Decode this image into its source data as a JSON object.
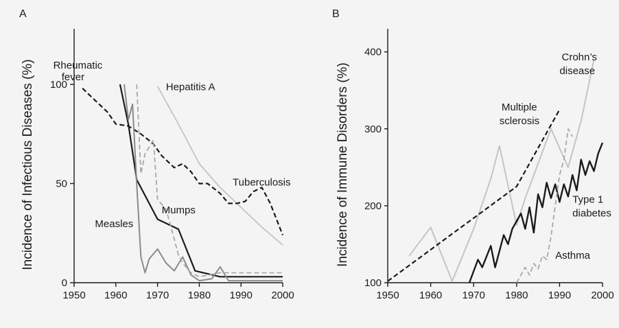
{
  "chart_data": [
    {
      "type": "line",
      "panel_label": "A",
      "title": "",
      "xlabel": "",
      "ylabel": "Incidence of Infectious Diseases (%)",
      "xlim": [
        1950,
        2000
      ],
      "ylim": [
        0,
        128
      ],
      "xticks": [
        "1950",
        "1960",
        "1970",
        "1980",
        "1990",
        "2000"
      ],
      "yticks": [
        "0",
        "50",
        "100"
      ],
      "grid": false,
      "legend": "none",
      "series": [
        {
          "name": "Rheumatic fever",
          "color": "#1a1a1a",
          "dash": "solid",
          "width": 2.2,
          "x": [
            1961,
            1963,
            1965,
            1970,
            1975,
            1979,
            1985,
            2000
          ],
          "y": [
            100,
            80,
            52,
            32,
            27,
            6,
            3,
            3
          ]
        },
        {
          "name": "Hepatitis A",
          "color": "#c4c4c4",
          "dash": "solid",
          "width": 1.8,
          "x": [
            1970,
            1975,
            1980,
            1985,
            1990,
            1995,
            2000
          ],
          "y": [
            99,
            80,
            60,
            48,
            38,
            28,
            19
          ]
        },
        {
          "name": "Tuberculosis",
          "color": "#1a1a1a",
          "dash": "dashed",
          "width": 2.2,
          "x": [
            1952,
            1954,
            1956,
            1958,
            1960,
            1963,
            1966,
            1969,
            1971,
            1974,
            1976,
            1978,
            1980,
            1982,
            1985,
            1987,
            1989,
            1991,
            1993,
            1995,
            1997,
            2000
          ],
          "y": [
            98,
            94,
            90,
            86,
            80,
            79,
            75,
            70,
            64,
            58,
            60,
            56,
            50,
            50,
            45,
            40,
            40,
            41,
            46,
            48,
            40,
            24
          ]
        },
        {
          "name": "Measles",
          "color": "#8a8a8a",
          "dash": "solid",
          "width": 2,
          "x": [
            1962,
            1963,
            1964,
            1965,
            1966,
            1967,
            1968,
            1970,
            1972,
            1974,
            1976,
            1978,
            1980,
            1983,
            1985,
            1987,
            2000
          ],
          "y": [
            100,
            82,
            90,
            50,
            13,
            5,
            12,
            17,
            10,
            6,
            13,
            4,
            1,
            2,
            8,
            1,
            1
          ]
        },
        {
          "name": "Mumps",
          "color": "#a8a8a8",
          "dash": "dashed",
          "width": 1.8,
          "x": [
            1965,
            1966,
            1967,
            1969,
            1970,
            1972,
            1973,
            1974,
            1975,
            1976,
            1978,
            1980,
            1985,
            2000
          ],
          "y": [
            100,
            55,
            65,
            72,
            42,
            37,
            30,
            22,
            14,
            10,
            5,
            3,
            5,
            5
          ]
        }
      ],
      "annotations": [
        {
          "text": "Rheumatic",
          "x": 1945,
          "y": 108
        },
        {
          "text": "fever",
          "x": 1947,
          "y": 102
        },
        {
          "text": "Hepatitis A",
          "x": 1972,
          "y": 97
        },
        {
          "text": "Tuberculosis",
          "x": 1988,
          "y": 49
        },
        {
          "text": "Mumps",
          "x": 1971,
          "y": 35
        },
        {
          "text": "Measles",
          "x": 1955,
          "y": 28
        }
      ]
    },
    {
      "type": "line",
      "panel_label": "B",
      "title": "",
      "xlabel": "",
      "ylabel": "Incidence of Immune Disorders (%)",
      "xlim": [
        1950,
        2000
      ],
      "ylim": [
        100,
        430
      ],
      "xticks": [
        "1950",
        "1960",
        "1970",
        "1980",
        "1990",
        "2000"
      ],
      "yticks": [
        "100",
        "200",
        "300",
        "400"
      ],
      "grid": false,
      "legend": "none",
      "series": [
        {
          "name": "Crohn's disease",
          "color": "#c4c4c4",
          "dash": "solid",
          "width": 2,
          "x": [
            1955,
            1960,
            1965,
            1970,
            1974,
            1976,
            1980,
            1982,
            1988,
            1992,
            1995,
            1998
          ],
          "y": [
            135,
            172,
            102,
            170,
            235,
            278,
            175,
            210,
            300,
            250,
            310,
            390
          ]
        },
        {
          "name": "Multiple sclerosis",
          "color": "#1a1a1a",
          "dash": "dashed",
          "width": 2.2,
          "x": [
            1950,
            1980,
            1990
          ],
          "y": [
            102,
            225,
            325
          ]
        },
        {
          "name": "Type 1 diabetes",
          "color": "#1a1a1a",
          "dash": "solid",
          "width": 2.4,
          "x": [
            1969,
            1971,
            1972,
            1974,
            1975,
            1977,
            1978,
            1979,
            1981,
            1982,
            1983,
            1984,
            1985,
            1986,
            1987,
            1988,
            1989,
            1990,
            1991,
            1992,
            1993,
            1994,
            1995,
            1996,
            1997,
            1998,
            1999,
            2000
          ],
          "y": [
            100,
            130,
            120,
            148,
            120,
            162,
            150,
            170,
            190,
            170,
            198,
            165,
            215,
            198,
            230,
            210,
            228,
            205,
            228,
            212,
            240,
            220,
            260,
            240,
            258,
            245,
            268,
            282
          ]
        },
        {
          "name": "Asthma",
          "color": "#a8a8a8",
          "dash": "dashed",
          "width": 1.8,
          "x": [
            1980,
            1982,
            1983,
            1984,
            1985,
            1986,
            1987,
            1988,
            1989,
            1990,
            1991,
            1992,
            1993
          ],
          "y": [
            100,
            120,
            110,
            125,
            118,
            135,
            130,
            160,
            200,
            240,
            260,
            300,
            290
          ]
        }
      ],
      "annotations": [
        {
          "text": "Crohn’s",
          "x": 1990.5,
          "y": 389
        },
        {
          "text": "disease",
          "x": 1990,
          "y": 371
        },
        {
          "text": "Multiple",
          "x": 1976.5,
          "y": 324
        },
        {
          "text": "sclerosis",
          "x": 1976,
          "y": 306
        },
        {
          "text": "Type 1",
          "x": 1993,
          "y": 204
        },
        {
          "text": "diabetes",
          "x": 1993,
          "y": 186
        },
        {
          "text": "Asthma",
          "x": 1989,
          "y": 131
        }
      ]
    }
  ]
}
